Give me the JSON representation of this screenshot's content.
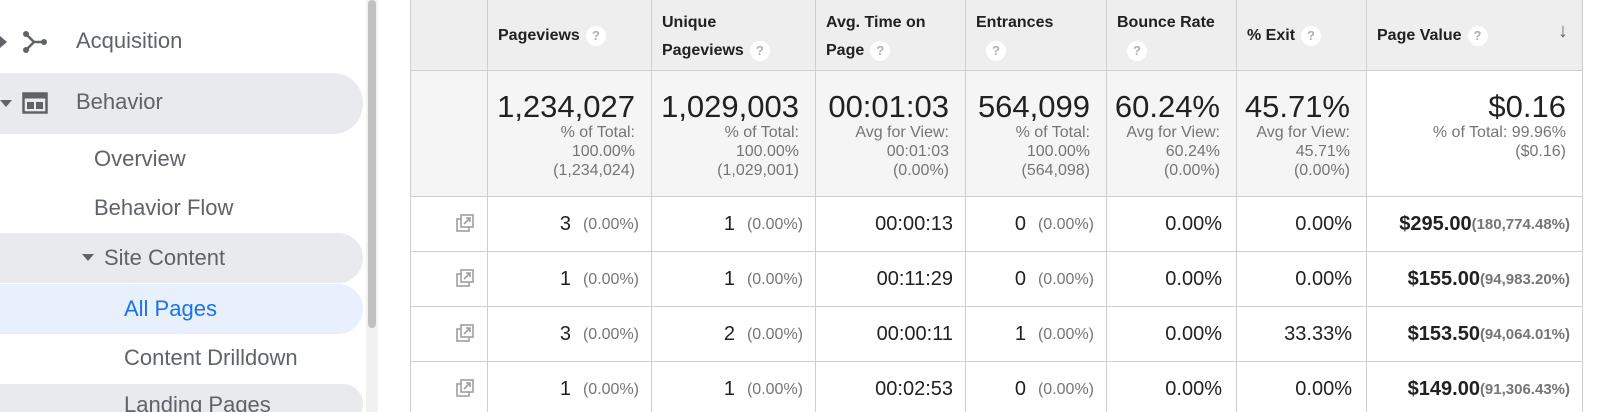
{
  "sidebar": {
    "items": [
      {
        "label": "Acquisition"
      },
      {
        "label": "Behavior"
      },
      {
        "label": "Overview"
      },
      {
        "label": "Behavior Flow"
      },
      {
        "label": "Site Content"
      },
      {
        "label": "All Pages"
      },
      {
        "label": "Content Drilldown"
      },
      {
        "label": "Landing Pages"
      }
    ]
  },
  "table": {
    "headers": {
      "pageviews": "Pageviews",
      "unique_pageviews_1": "Unique",
      "unique_pageviews_2": "Pageviews",
      "avg_time_1": "Avg. Time on",
      "avg_time_2": "Page",
      "entrances": "Entrances",
      "bounce_rate": "Bounce Rate",
      "exit": "% Exit",
      "page_value": "Page Value"
    },
    "help_glyph": "?",
    "sort_glyph": "↓",
    "summary": {
      "pageviews": {
        "value": "1,234,027",
        "sub": "% of Total:\n100.00%\n(1,234,024)"
      },
      "unique_pageviews": {
        "value": "1,029,003",
        "sub": "% of Total:\n100.00%\n(1,029,001)"
      },
      "avg_time": {
        "value": "00:01:03",
        "sub": "Avg for View:\n00:01:03\n(0.00%)"
      },
      "entrances": {
        "value": "564,099",
        "sub": "% of Total:\n100.00%\n(564,098)"
      },
      "bounce_rate": {
        "value": "60.24%",
        "sub": "Avg for View:\n60.24%\n(0.00%)"
      },
      "exit": {
        "value": "45.71%",
        "sub": "Avg for View:\n45.71%\n(0.00%)"
      },
      "page_value": {
        "value": "$0.16",
        "sub": "% of Total: 99.96%\n($0.16)"
      }
    },
    "rows": [
      {
        "pageviews": "3",
        "pageviews_pct": "(0.00%)",
        "unique": "1",
        "unique_pct": "(0.00%)",
        "avg_time": "00:00:13",
        "entrances": "0",
        "entrances_pct": "(0.00%)",
        "bounce_rate": "0.00%",
        "exit": "0.00%",
        "page_value": "$295.00",
        "page_value_pct": "(180,774.48%)"
      },
      {
        "pageviews": "1",
        "pageviews_pct": "(0.00%)",
        "unique": "1",
        "unique_pct": "(0.00%)",
        "avg_time": "00:11:29",
        "entrances": "0",
        "entrances_pct": "(0.00%)",
        "bounce_rate": "0.00%",
        "exit": "0.00%",
        "page_value": "$155.00",
        "page_value_pct": "(94,983.20%)"
      },
      {
        "pageviews": "3",
        "pageviews_pct": "(0.00%)",
        "unique": "2",
        "unique_pct": "(0.00%)",
        "avg_time": "00:00:11",
        "entrances": "1",
        "entrances_pct": "(0.00%)",
        "bounce_rate": "0.00%",
        "exit": "33.33%",
        "page_value": "$153.50",
        "page_value_pct": "(94,064.01%)"
      },
      {
        "pageviews": "1",
        "pageviews_pct": "(0.00%)",
        "unique": "1",
        "unique_pct": "(0.00%)",
        "avg_time": "00:02:53",
        "entrances": "0",
        "entrances_pct": "(0.00%)",
        "bounce_rate": "0.00%",
        "exit": "0.00%",
        "page_value": "$149.00",
        "page_value_pct": "(91,306.43%)"
      }
    ]
  },
  "colors": {
    "accent": "#1a73e8",
    "selected_bg": "#e8f0fe",
    "pill_bg": "#e8eaed",
    "header_bg": "#eeeeee",
    "summary_bg": "#f5f5f5",
    "border": "#cfcfcf"
  },
  "icons": {
    "acquisition": "acquisition-icon",
    "behavior": "behavior-icon",
    "row_link": "open-in-new-icon"
  }
}
